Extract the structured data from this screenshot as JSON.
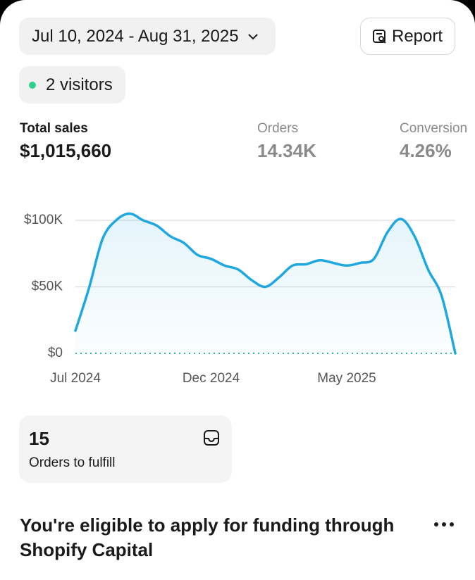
{
  "header": {
    "date_range": "Jul 10, 2024 - Aug 31, 2025",
    "report_button": "Report"
  },
  "visitors": "2 visitors",
  "metrics": [
    {
      "label": "Total sales",
      "value": "$1,015,660"
    },
    {
      "label": "Orders",
      "value": "14.34K"
    },
    {
      "label": "Conversion",
      "value": "4.26%"
    }
  ],
  "chart_data": {
    "type": "line",
    "categories": [
      "Jul 2024",
      null,
      null,
      null,
      null,
      null,
      null,
      null,
      null,
      null,
      "Dec 2024",
      null,
      null,
      null,
      null,
      null,
      null,
      null,
      null,
      null,
      "May 2025",
      null,
      null,
      null,
      null,
      null,
      null,
      null,
      null
    ],
    "values": [
      17000,
      49000,
      86000,
      100000,
      105000,
      100000,
      96000,
      88000,
      83000,
      74000,
      71000,
      66000,
      63000,
      55000,
      50000,
      57000,
      66000,
      67000,
      70000,
      68000,
      66000,
      68000,
      71000,
      91000,
      101000,
      88000,
      63000,
      43000,
      0
    ],
    "color": "#1fa7e0",
    "ylim": [
      0,
      112000
    ],
    "yticks": [
      {
        "value": 0,
        "label": "$0"
      },
      {
        "value": 50000,
        "label": "$50K"
      },
      {
        "value": 100000,
        "label": "$100K"
      }
    ],
    "grid": true
  },
  "fulfill": {
    "count": 15,
    "label": "Orders to fulfill"
  },
  "funding": {
    "title": "You're eligible to apply for funding through Shopify Capital"
  }
}
